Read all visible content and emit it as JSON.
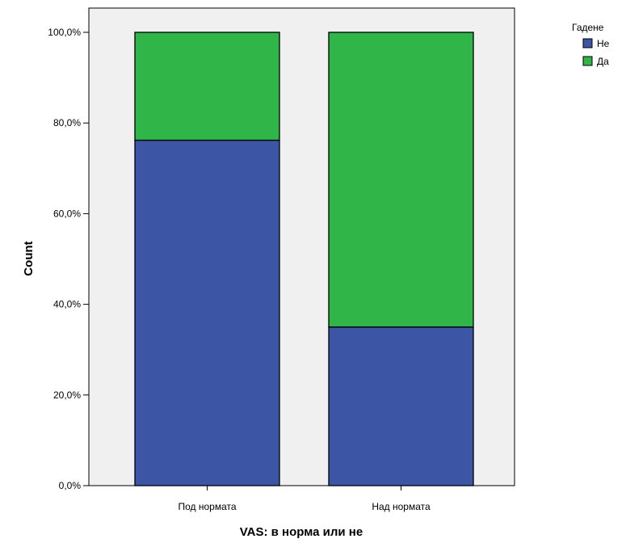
{
  "chart_data": {
    "type": "bar",
    "stacked": true,
    "categories": [
      "Под нормата",
      "Над нормата"
    ],
    "series": [
      {
        "name": "Не",
        "values": [
          76.2,
          35.0
        ],
        "color": "#3c55a5"
      },
      {
        "name": "Да",
        "values": [
          23.8,
          65.0
        ],
        "color": "#2fb548"
      }
    ],
    "xlabel": "VAS: в норма или не",
    "ylabel": "Count",
    "ylim": [
      0,
      100
    ],
    "y_ticks": [
      "0,0%",
      "20,0%",
      "40,0%",
      "60,0%",
      "80,0%",
      "100,0%"
    ],
    "legend": {
      "title": "Гадене",
      "placement": "top-right"
    },
    "plot_background": "#f0f0f0",
    "grid": false
  }
}
